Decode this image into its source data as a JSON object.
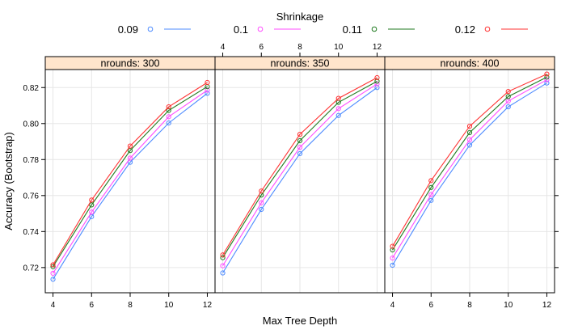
{
  "chart_data": {
    "type": "line",
    "title": "",
    "xlabel": "Max Tree Depth",
    "ylabel": "Accuracy (Bootstrap)",
    "legend_title": "Shrinkage",
    "legend_position": "top",
    "grid": true,
    "xlim": [
      3.6,
      12.4
    ],
    "ylim": [
      0.706,
      0.83
    ],
    "x": [
      4,
      6,
      8,
      10,
      12
    ],
    "x_ticks": [
      4,
      6,
      8,
      10,
      12
    ],
    "x_tick_labels": [
      "4",
      "6",
      "8",
      "10",
      "12"
    ],
    "y_ticks": [
      0.72,
      0.74,
      0.76,
      0.78,
      0.8,
      0.82
    ],
    "y_tick_labels": [
      "0.72",
      "0.74",
      "0.76",
      "0.78",
      "0.80",
      "0.82"
    ],
    "series_styles": [
      {
        "label": "0.09",
        "color": "#4d8bff"
      },
      {
        "label": "0.1",
        "color": "#ff4dff"
      },
      {
        "label": "0.11",
        "color": "#1f7a1f"
      },
      {
        "label": "0.12",
        "color": "#ff3333"
      }
    ],
    "panels": [
      {
        "label": "nrounds: 300",
        "series": [
          {
            "name": "0.09",
            "values": [
              0.7135,
              0.7483,
              0.7785,
              0.8003,
              0.8168
            ]
          },
          {
            "name": "0.1",
            "values": [
              0.7168,
              0.7508,
              0.7808,
              0.8038,
              0.8185
            ]
          },
          {
            "name": "0.11",
            "values": [
              0.7205,
              0.7548,
              0.785,
              0.8073,
              0.8205
            ]
          },
          {
            "name": "0.12",
            "values": [
              0.7215,
              0.7575,
              0.7875,
              0.8093,
              0.8228
            ]
          }
        ]
      },
      {
        "label": "nrounds: 350",
        "series": [
          {
            "name": "0.09",
            "values": [
              0.717,
              0.7523,
              0.7833,
              0.8045,
              0.82
            ]
          },
          {
            "name": "0.1",
            "values": [
              0.721,
              0.756,
              0.7868,
              0.8083,
              0.822
            ]
          },
          {
            "name": "0.11",
            "values": [
              0.7255,
              0.7603,
              0.7905,
              0.8118,
              0.8235
            ]
          },
          {
            "name": "0.12",
            "values": [
              0.727,
              0.7625,
              0.794,
              0.814,
              0.8255
            ]
          }
        ]
      },
      {
        "label": "nrounds: 400",
        "series": [
          {
            "name": "0.09",
            "values": [
              0.7213,
              0.7573,
              0.788,
              0.8093,
              0.8225
            ]
          },
          {
            "name": "0.1",
            "values": [
              0.7253,
              0.7605,
              0.791,
              0.8125,
              0.8243
            ]
          },
          {
            "name": "0.11",
            "values": [
              0.7298,
              0.7645,
              0.795,
              0.815,
              0.8258
            ]
          },
          {
            "name": "0.12",
            "values": [
              0.7318,
              0.7683,
              0.7985,
              0.8178,
              0.8275
            ]
          }
        ]
      }
    ]
  }
}
